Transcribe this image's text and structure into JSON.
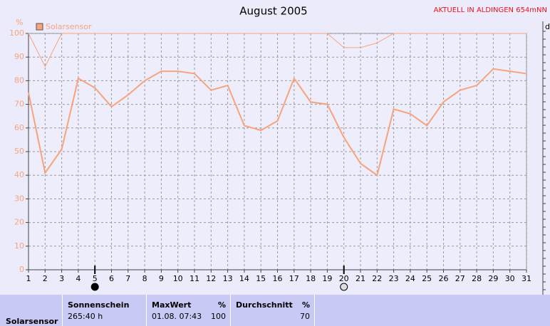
{
  "chart_data": {
    "type": "line",
    "title": "August 2005",
    "annotation": "AKTUELL IN ALDINGEN 654mNN",
    "y_label": "%",
    "right_label": "d",
    "x": [
      1,
      2,
      3,
      4,
      5,
      6,
      7,
      8,
      9,
      10,
      11,
      12,
      13,
      14,
      15,
      16,
      17,
      18,
      19,
      20,
      21,
      22,
      23,
      24,
      25,
      26,
      27,
      28,
      29,
      30,
      31
    ],
    "series": [
      {
        "name": "Solarsensor",
        "color": "#f7a47c",
        "width": 2,
        "values": [
          75,
          41,
          51,
          81,
          77,
          69,
          74,
          80,
          84,
          84,
          83,
          76,
          78,
          61,
          59,
          63,
          81,
          71,
          70,
          56,
          45,
          40,
          68,
          66,
          61,
          71,
          76,
          78,
          85,
          84,
          83
        ]
      },
      {
        "color": "#f7a47c",
        "width": 1,
        "values": [
          100,
          86,
          100,
          100,
          100,
          100,
          100,
          100,
          100,
          100,
          100,
          100,
          100,
          100,
          100,
          100,
          100,
          100,
          100,
          94,
          94,
          96,
          100,
          100,
          100,
          100,
          100,
          100,
          100,
          100,
          100
        ]
      }
    ],
    "xlim": [
      1,
      31
    ],
    "xticks": [
      1,
      2,
      3,
      4,
      5,
      6,
      7,
      8,
      9,
      10,
      11,
      12,
      13,
      14,
      15,
      16,
      17,
      18,
      19,
      20,
      21,
      22,
      23,
      24,
      25,
      26,
      27,
      28,
      29,
      30,
      31
    ],
    "ylim": [
      0,
      100
    ],
    "yticks": [
      0,
      10,
      20,
      30,
      40,
      50,
      60,
      70,
      80,
      90,
      100
    ],
    "grid": true,
    "moon_phases": [
      {
        "x": 5,
        "phase": "new"
      },
      {
        "x": 20,
        "phase": "full"
      }
    ]
  },
  "table": {
    "row_label": "Solarsensor",
    "columns": [
      {
        "header": "Sonnenschein",
        "value": "265:40 h"
      },
      {
        "header": "MaxWert",
        "unit": "%",
        "date": "01.08. 07:43",
        "value": 100
      },
      {
        "header": "Durchschnitt",
        "unit": "%",
        "value": 70
      }
    ]
  }
}
